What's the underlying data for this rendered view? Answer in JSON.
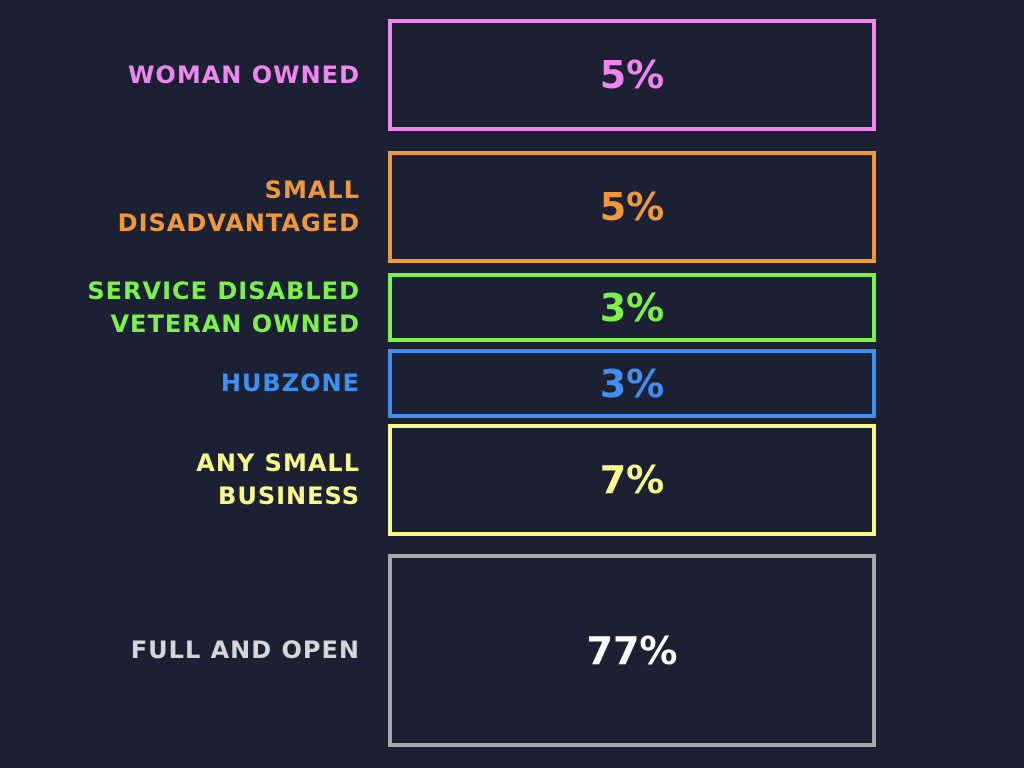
{
  "chart_data": {
    "type": "bar",
    "title": "",
    "categories": [
      "WOMAN OWNED",
      "SMALL DISADVANTAGED",
      "SERVICE DISABLED VETERAN OWNED",
      "HUBZONE",
      "ANY SMALL BUSINESS",
      "FULL AND OPEN"
    ],
    "values": [
      5,
      5,
      3,
      3,
      7,
      77
    ],
    "unit": "%",
    "rows": [
      {
        "label_lines": [
          "WOMAN OWNED"
        ],
        "value_label": "5%",
        "value": 5,
        "color": "#ef85ef"
      },
      {
        "label_lines": [
          "SMALL",
          "DISADVANTAGED"
        ],
        "value_label": "5%",
        "value": 5,
        "color": "#f0983a"
      },
      {
        "label_lines": [
          "SERVICE DISABLED",
          "VETERAN OWNED"
        ],
        "value_label": "3%",
        "value": 3,
        "color": "#7ef04a"
      },
      {
        "label_lines": [
          "HUBZONE"
        ],
        "value_label": "3%",
        "value": 3,
        "color": "#3e8ff0"
      },
      {
        "label_lines": [
          "ANY SMALL",
          "BUSINESS"
        ],
        "value_label": "7%",
        "value": 7,
        "color": "#fafa8a"
      },
      {
        "label_lines": [
          "FULL AND OPEN"
        ],
        "value_label": "77%",
        "value": 77,
        "color": "#a8a8a8",
        "text_color": "#ffffff",
        "label_color": "#d6d6d6"
      }
    ]
  }
}
